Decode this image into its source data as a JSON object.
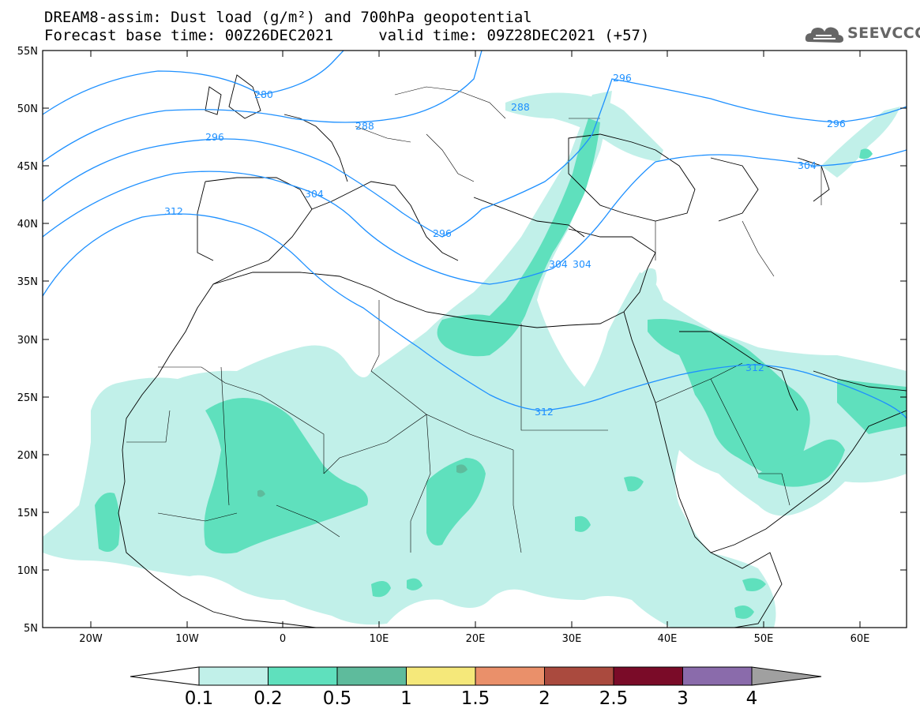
{
  "title": {
    "line1": "DREAM8-assim: Dust load (g/m²) and 700hPa geopotential",
    "line2": "Forecast base time: 00Z26DEC2021     valid time: 09Z28DEC2021 (+57)"
  },
  "logo": {
    "text": "SEEVCCC",
    "icon": "cloud-logo-icon"
  },
  "map": {
    "lat_labels": [
      "55N",
      "50N",
      "45N",
      "40N",
      "35N",
      "30N",
      "25N",
      "20N",
      "15N",
      "10N",
      "5N"
    ],
    "lon_labels": [
      "20W",
      "10W",
      "0",
      "10E",
      "20E",
      "30E",
      "40E",
      "50E",
      "60E"
    ],
    "contour_labels": [
      "280",
      "288",
      "288",
      "296",
      "296",
      "296",
      "304",
      "304",
      "304",
      "312",
      "312",
      "312",
      "296",
      "304"
    ]
  },
  "colorbar": {
    "labels": [
      "0.1",
      "0.2",
      "0.5",
      "1",
      "1.5",
      "2",
      "2.5",
      "3",
      "4"
    ],
    "colors": [
      "#c1f0e9",
      "#5fe0bd",
      "#5ebb9c",
      "#f5e87a",
      "#ea906a",
      "#aa4a3e",
      "#7a0b28",
      "#8a6bab"
    ],
    "under_color": "#ffffff",
    "over_color": "#a0a0a0"
  }
}
